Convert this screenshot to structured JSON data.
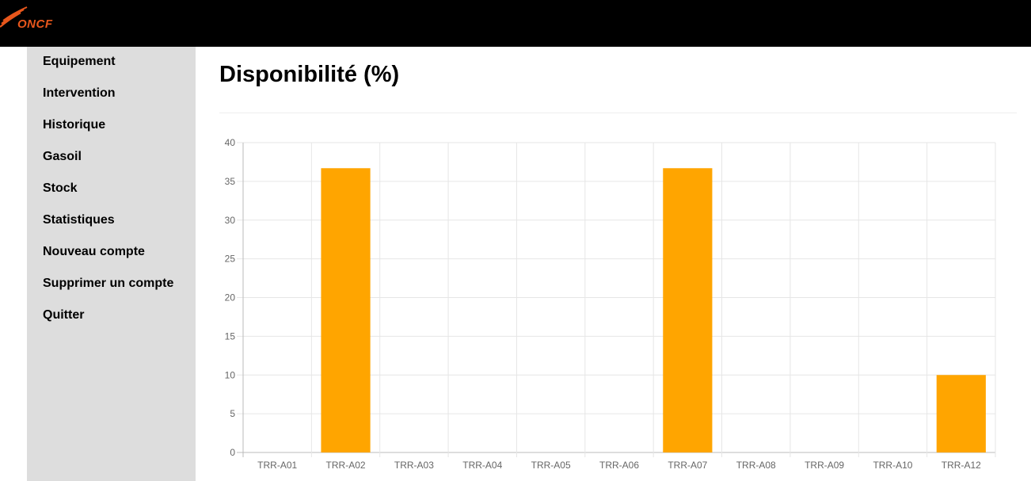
{
  "app": {
    "logo_text": "ONCF",
    "brand_color": "#e8571c"
  },
  "sidebar": {
    "items": [
      {
        "label": "Equipement"
      },
      {
        "label": "Intervention"
      },
      {
        "label": "Historique"
      },
      {
        "label": "Gasoil"
      },
      {
        "label": "Stock"
      },
      {
        "label": "Statistiques"
      },
      {
        "label": "Nouveau compte"
      },
      {
        "label": "Supprimer un compte"
      },
      {
        "label": "Quitter"
      }
    ]
  },
  "main": {
    "title": "Disponibilité (%)"
  },
  "chart_data": {
    "type": "bar",
    "categories": [
      "TRR-A01",
      "TRR-A02",
      "TRR-A03",
      "TRR-A04",
      "TRR-A05",
      "TRR-A06",
      "TRR-A07",
      "TRR-A08",
      "TRR-A09",
      "TRR-A10",
      "TRR-A12"
    ],
    "values": [
      0,
      36.7,
      0,
      0,
      0,
      0,
      36.7,
      0,
      0,
      0,
      10
    ],
    "ylim": [
      0,
      40
    ],
    "yticks": [
      0,
      5,
      10,
      15,
      20,
      25,
      30,
      35,
      40
    ],
    "grid": true,
    "legend": "none",
    "bar_color": "#ffa500"
  }
}
